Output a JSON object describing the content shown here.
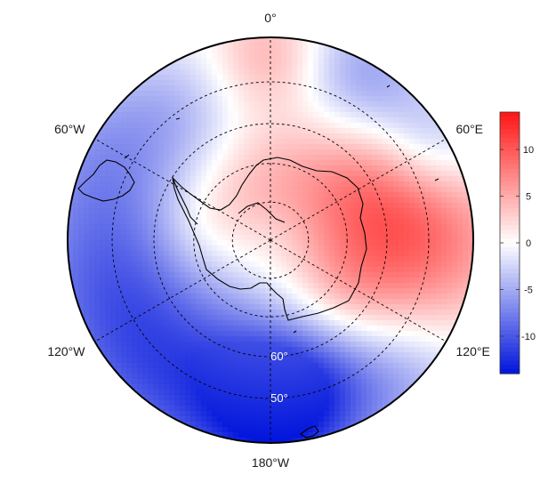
{
  "chart_data": {
    "type": "heatmap",
    "projection": "south-polar-stereographic",
    "grid": true,
    "legend_placement": "right",
    "longitude_labels": [
      "0°",
      "60°E",
      "120°E",
      "180°W",
      "120°W",
      "60°W"
    ],
    "longitude_label_degrees": [
      0,
      60,
      120,
      180,
      -120,
      -60
    ],
    "latitude_labels": [
      "60°",
      "50°"
    ],
    "latitude_circles": [
      -80,
      -70,
      -60,
      -50
    ],
    "map_boundary_latitude": -40,
    "colorbar": {
      "min": -14,
      "max": 14,
      "ticks": [
        10,
        5,
        0,
        -5,
        -10
      ],
      "tick_labels": [
        "10",
        "5",
        "0",
        "-5",
        "-10"
      ],
      "colors": [
        "#0014dc",
        "#ffffff",
        "#ff1414"
      ]
    },
    "approximate_field": [
      {
        "region": "Antarctic interior and Indian Ocean sector (20°E–110°E, 55°S–75°S)",
        "value": 9
      },
      {
        "region": "West Antarctica / Antarctic Peninsula",
        "value": 5
      },
      {
        "region": "South Atlantic near 0° (45°S)",
        "value": 5
      },
      {
        "region": "Amundsen–Bellingshausen Sea / South Pacific (90°W–120°W)",
        "value": -10
      },
      {
        "region": "South Pacific near 180° (45°S–50°S)",
        "value": -13
      },
      {
        "region": "South Indian Ocean near 30°E (45°S)",
        "value": -7
      },
      {
        "region": "South Atlantic near 40°W (50°S)",
        "value": -4
      }
    ]
  }
}
